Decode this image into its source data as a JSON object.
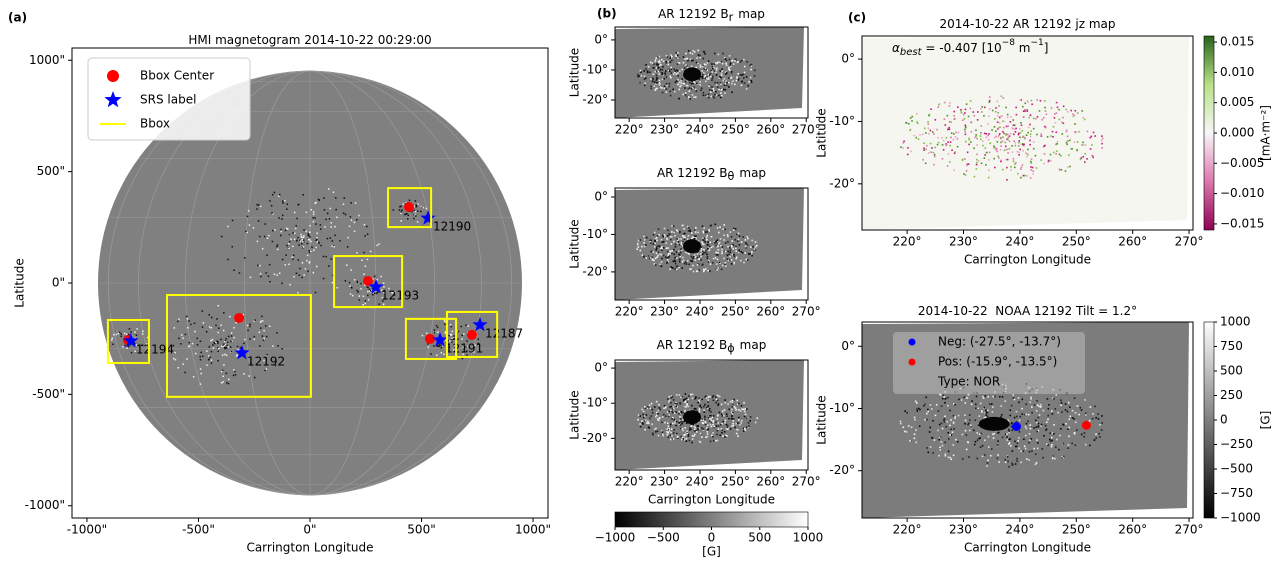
{
  "chart_data": [
    {
      "type": "scatter",
      "panel_label": "(a)",
      "title": "HMI magnetogram 2014-10-22 00:29:00",
      "xlabel": "Carrington Longitude",
      "ylabel": "Latitude",
      "xlim": [
        -1067,
        1067
      ],
      "ylim": [
        -1055,
        1055
      ],
      "xticks": [
        {
          "value": -1000,
          "label": "-1000\""
        },
        {
          "value": -500,
          "label": "-500\""
        },
        {
          "value": 0,
          "label": "0\""
        },
        {
          "value": 500,
          "label": "500\""
        },
        {
          "value": 1000,
          "label": "1000\""
        }
      ],
      "yticks": [
        {
          "value": -1000,
          "label": "-1000\""
        },
        {
          "value": -500,
          "label": "-500\""
        },
        {
          "value": 0,
          "label": "0\""
        },
        {
          "value": 500,
          "label": "500\""
        },
        {
          "value": 1000,
          "label": "1000\""
        }
      ],
      "series": [
        {
          "name": "Bbox Center",
          "color": "#ff0000",
          "marker": "circle",
          "x": [
            444,
            260,
            -318,
            -816,
            538,
            726
          ],
          "y": [
            341,
            9,
            -157,
            -256,
            -251,
            -233
          ]
        },
        {
          "name": "SRS label",
          "color": "#0000ff",
          "marker": "star",
          "x": [
            529,
            296,
            -305,
            -803,
            583,
            762
          ],
          "y": [
            291,
            -18,
            -314,
            -260,
            -256,
            -188
          ]
        },
        {
          "name": "Bbox",
          "color": "#ffff00",
          "marker": "line",
          "boxes": [
            [
              350,
              543,
              251,
              426
            ],
            [
              108,
              413,
              -108,
              121
            ],
            [
              -641,
              4,
              -511,
              -54
            ],
            [
              -906,
              -722,
              -359,
              -166
            ],
            [
              430,
              655,
              -341,
              -161
            ],
            [
              614,
              839,
              -332,
              -130
            ]
          ]
        }
      ],
      "annotations": [
        "12190",
        "12193",
        "12192",
        "12194",
        "12191",
        "12187"
      ]
    },
    {
      "type": "image",
      "panel_label": "(b)",
      "title": "AR 12192 B",
      "title_sub": "r",
      "title_end": "map",
      "ylabel": "Latitude",
      "xlim": [
        216,
        270.5
      ],
      "ylim": [
        -26,
        4.3
      ],
      "xticks": [
        {
          "value": 220,
          "label": "220°"
        },
        {
          "value": 230,
          "label": "230°"
        },
        {
          "value": 240,
          "label": "240°"
        },
        {
          "value": 250,
          "label": "250°"
        },
        {
          "value": 260,
          "label": "260°"
        },
        {
          "value": 270,
          "label": "270°"
        }
      ],
      "yticks": [
        {
          "value": 0,
          "label": "0°"
        },
        {
          "value": -10,
          "label": "-10°"
        },
        {
          "value": -20,
          "label": "-20°"
        }
      ]
    },
    {
      "type": "image",
      "title": "AR 12192 B",
      "title_sub": "θ",
      "title_end": "map",
      "ylabel": "Latitude",
      "xlim": [
        216,
        270.5
      ],
      "ylim": [
        -27.5,
        2.4
      ],
      "xticks": [
        {
          "value": 220,
          "label": "220°"
        },
        {
          "value": 230,
          "label": "230°"
        },
        {
          "value": 240,
          "label": "240°"
        },
        {
          "value": 250,
          "label": "250°"
        },
        {
          "value": 260,
          "label": "260°"
        },
        {
          "value": 270,
          "label": "270°"
        }
      ],
      "yticks": [
        {
          "value": 0,
          "label": "0°"
        },
        {
          "value": -10,
          "label": "-10°"
        },
        {
          "value": -20,
          "label": "-20°"
        }
      ]
    },
    {
      "type": "image",
      "title": "AR 12192 B",
      "title_sub": "ϕ",
      "title_end": "map",
      "ylabel": "Latitude",
      "xlabel": "Carrington Longitude",
      "xlim": [
        216,
        270.5
      ],
      "ylim": [
        -29,
        2.3
      ],
      "xticks": [
        {
          "value": 220,
          "label": "220°"
        },
        {
          "value": 230,
          "label": "230°"
        },
        {
          "value": 240,
          "label": "240°"
        },
        {
          "value": 250,
          "label": "250°"
        },
        {
          "value": 260,
          "label": "260°"
        },
        {
          "value": 270,
          "label": "270°"
        }
      ],
      "yticks": [
        {
          "value": 0,
          "label": "0°"
        },
        {
          "value": -10,
          "label": "-10°"
        },
        {
          "value": -20,
          "label": "-20°"
        }
      ],
      "colorbar": {
        "lim": [
          -1000,
          1000
        ],
        "label": "[G]",
        "ticks": [
          {
            "value": -1000,
            "label": "−1000"
          },
          {
            "value": -500,
            "label": "−500"
          },
          0,
          500,
          1000
        ]
      }
    },
    {
      "type": "image",
      "panel_label": "(c)",
      "title": "2014-10-22 AR 12192 jz map",
      "annotation": [
        "α",
        "best",
        " = -0.407 [10",
        "−8",
        " m",
        "−1",
        "]"
      ],
      "xlabel": "Carrington Longitude",
      "ylabel": "Latitude",
      "xlim": [
        212,
        270.7
      ],
      "ylim": [
        -27.4,
        3.7
      ],
      "xticks": [
        {
          "value": 220,
          "label": "220°"
        },
        {
          "value": 230,
          "label": "230°"
        },
        {
          "value": 240,
          "label": "240°"
        },
        {
          "value": 250,
          "label": "250°"
        },
        {
          "value": 260,
          "label": "260°"
        },
        {
          "value": 270,
          "label": "270°"
        }
      ],
      "yticks": [
        {
          "value": 0,
          "label": "0°"
        },
        {
          "value": -10,
          "label": "-10°"
        },
        {
          "value": -20,
          "label": "-20°"
        }
      ],
      "colorbar": {
        "lim": [
          -0.016,
          0.016
        ],
        "label": "[mA·m⁻²]",
        "ticks": [
          {
            "value": -0.015,
            "label": "−0.015"
          },
          {
            "value": -0.01,
            "label": "−0.010"
          },
          {
            "value": -0.005,
            "label": "−0.005"
          },
          {
            "value": 0,
            "label": "0.000"
          },
          {
            "value": 0.005,
            "label": "0.005"
          },
          {
            "value": 0.01,
            "label": "0.010"
          },
          {
            "value": 0.015,
            "label": "0.015"
          }
        ]
      }
    },
    {
      "type": "scatter",
      "title": "2014-10-22  NOAA 12192 Tilt = 1.2°",
      "xlabel": "Carrington Longitude",
      "ylabel": "Latitude",
      "xlim": [
        212,
        270.7
      ],
      "ylim": [
        -27.6,
        3.9
      ],
      "xticks": [
        {
          "value": 220,
          "label": "220°"
        },
        {
          "value": 230,
          "label": "230°"
        },
        {
          "value": 240,
          "label": "240°"
        },
        {
          "value": 250,
          "label": "250°"
        },
        {
          "value": 260,
          "label": "260°"
        },
        {
          "value": 270,
          "label": "270°"
        }
      ],
      "yticks": [
        {
          "value": 0,
          "label": "0°"
        },
        {
          "value": -10,
          "label": "-10°"
        },
        {
          "value": -20,
          "label": "-20°"
        }
      ],
      "series": [
        {
          "name": "Neg: (-27.5°, -13.7°)",
          "color": "#0000ff",
          "marker": "circle",
          "x": [
            239.4
          ],
          "y": [
            -12.9
          ]
        },
        {
          "name": "Pos: (-15.9°, -13.5°)",
          "color": "#ff0000",
          "marker": "circle",
          "x": [
            251.8
          ],
          "y": [
            -12.7
          ]
        }
      ],
      "legend_note": "Type: NOR",
      "colorbar": {
        "lim": [
          -1000,
          1000
        ],
        "label": "[G]",
        "ticks": [
          {
            "value": -1000,
            "label": "−1000"
          },
          {
            "value": -750,
            "label": "−750"
          },
          {
            "value": -500,
            "label": "−500"
          },
          {
            "value": -250,
            "label": "−250"
          },
          0,
          250,
          500,
          750,
          1000
        ]
      }
    }
  ]
}
